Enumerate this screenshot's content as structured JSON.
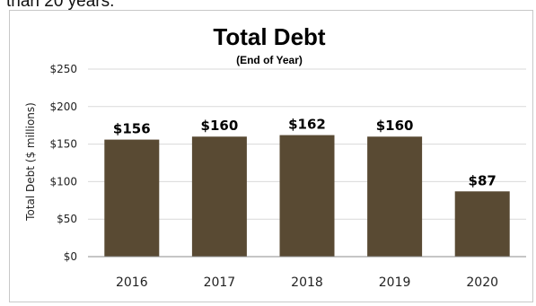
{
  "caption": "than 20 years.",
  "colors": {
    "bar": "#594a33",
    "grid": "#d9d9d9",
    "axis": "#8c8c8c",
    "frame": "#c8c8c8"
  },
  "chart_data": {
    "type": "bar",
    "title": "Total Debt",
    "subtitle": "(End of Year)",
    "xlabel": "",
    "ylabel": "Total Debt ($ millions)",
    "categories": [
      "2016",
      "2017",
      "2018",
      "2019",
      "2020"
    ],
    "values": [
      156,
      160,
      162,
      160,
      87
    ],
    "value_labels": [
      "$156",
      "$160",
      "$162",
      "$160",
      "$87"
    ],
    "ylim": [
      0,
      250
    ],
    "yticks": [
      0,
      50,
      100,
      150,
      200,
      250
    ],
    "ytick_labels": [
      "$0",
      "$50",
      "$100",
      "$150",
      "$200",
      "$250"
    ],
    "grid": true,
    "legend": "none"
  }
}
